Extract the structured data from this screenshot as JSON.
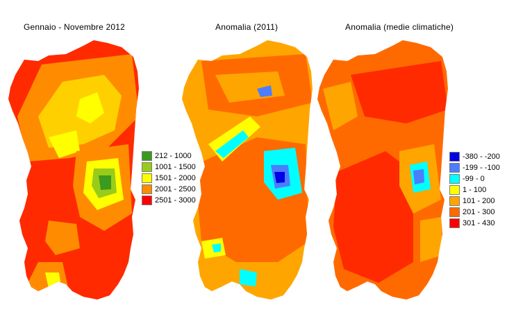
{
  "panels": [
    {
      "title": "Gennaio - Novembre 2012"
    },
    {
      "title": "Anomalia (2011)"
    },
    {
      "title": "Anomalia (medie climatiche)"
    }
  ],
  "legend_precip": [
    {
      "label": "212 - 1000",
      "color": "#3c9a1e"
    },
    {
      "label": "1001 - 1500",
      "color": "#99cc1a"
    },
    {
      "label": "1501 - 2000",
      "color": "#ffff00"
    },
    {
      "label": "2001 - 2500",
      "color": "#ff8c00"
    },
    {
      "label": "2501 - 3000",
      "color": "#ff0000"
    }
  ],
  "legend_anomaly": [
    {
      "label": "-380 - -200",
      "color": "#0000e6"
    },
    {
      "label": "-199 - -100",
      "color": "#4c7dff"
    },
    {
      "label": "-99 - 0",
      "color": "#00ffff"
    },
    {
      "label": "1 - 100",
      "color": "#ffff00"
    },
    {
      "label": "101 - 200",
      "color": "#ffa500"
    },
    {
      "label": "201 - 300",
      "color": "#ff6a00"
    },
    {
      "label": "301 - 430",
      "color": "#ff0000"
    }
  ]
}
